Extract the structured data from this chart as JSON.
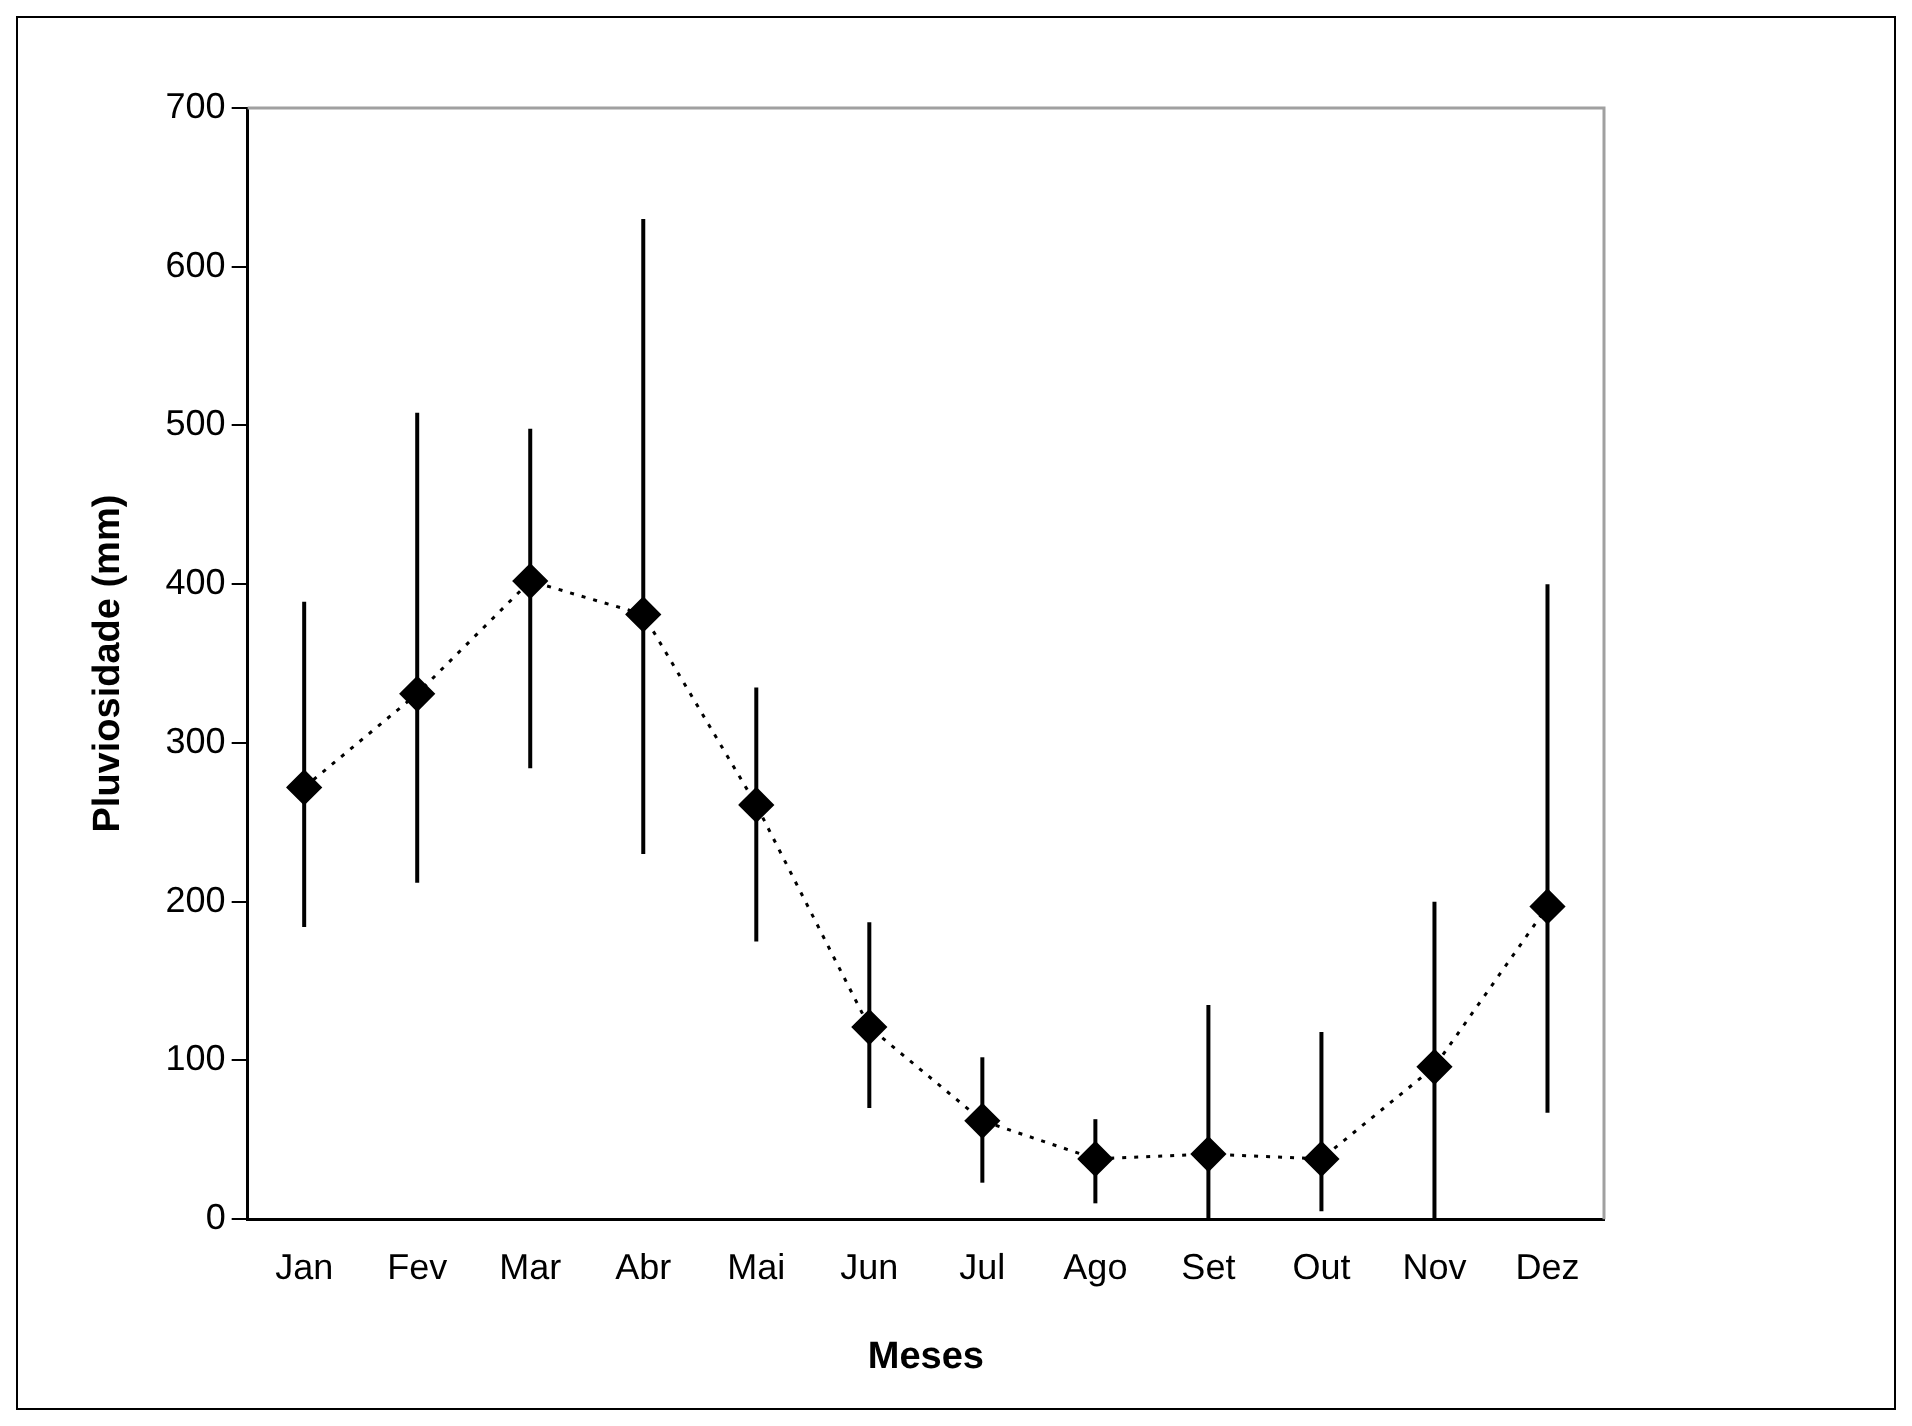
{
  "chart_data": {
    "type": "line",
    "xlabel": "Meses",
    "ylabel": "Pluviosidade (mm)",
    "categories": [
      "Jan",
      "Fev",
      "Mar",
      "Abr",
      "Mai",
      "Jun",
      "Jul",
      "Ago",
      "Set",
      "Out",
      "Nov",
      "Dez"
    ],
    "series": [
      {
        "color": "#000000",
        "values": [
          272,
          331,
          402,
          381,
          261,
          121,
          62,
          38,
          41,
          38,
          96,
          197
        ],
        "errors": [
          [
            184,
            389
          ],
          [
            212,
            508
          ],
          [
            284,
            498
          ],
          [
            230,
            630
          ],
          [
            175,
            335
          ],
          [
            70,
            187
          ],
          [
            23,
            102
          ],
          [
            10,
            63
          ],
          [
            0,
            135
          ],
          [
            5,
            118
          ],
          [
            0,
            200
          ],
          [
            67,
            400
          ]
        ]
      }
    ],
    "ylim": [
      0,
      700
    ],
    "yticks": [
      0,
      100,
      200,
      300,
      400,
      500,
      600,
      700
    ],
    "grid": false,
    "legend": false,
    "marker": "diamond",
    "line_style": "dotted"
  }
}
